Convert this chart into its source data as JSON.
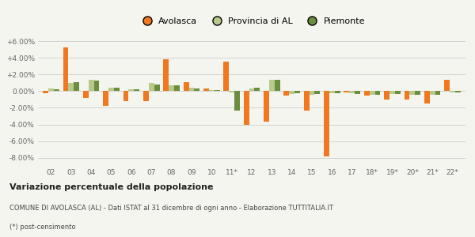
{
  "categories": [
    "02",
    "03",
    "04",
    "05",
    "06",
    "07",
    "08",
    "09",
    "10",
    "11*",
    "12",
    "13",
    "14",
    "15",
    "16",
    "17",
    "18*",
    "19*",
    "20*",
    "21*",
    "22*"
  ],
  "avolasca": [
    -0.2,
    5.3,
    -0.8,
    -1.8,
    -1.2,
    -1.2,
    3.9,
    1.1,
    0.3,
    3.6,
    -4.0,
    -3.7,
    -0.5,
    -2.3,
    -7.9,
    -0.1,
    -0.5,
    -1.0,
    -1.0,
    -1.5,
    1.4
  ],
  "provincia": [
    0.3,
    1.0,
    1.4,
    0.4,
    0.2,
    1.0,
    0.7,
    0.4,
    0.1,
    -0.1,
    0.3,
    1.4,
    -0.3,
    -0.4,
    -0.2,
    -0.2,
    -0.4,
    -0.3,
    -0.4,
    -0.4,
    -0.1
  ],
  "piemonte": [
    0.2,
    1.1,
    1.3,
    0.4,
    0.2,
    0.8,
    0.7,
    0.3,
    0.1,
    -2.3,
    0.4,
    1.4,
    -0.2,
    -0.3,
    -0.2,
    -0.3,
    -0.4,
    -0.3,
    -0.4,
    -0.4,
    -0.1
  ],
  "color_avolasca": "#f07820",
  "color_provincia": "#b8c98a",
  "color_piemonte": "#6b8e3e",
  "ylim": [
    -9.0,
    7.0
  ],
  "yticks": [
    -8.0,
    -6.0,
    -4.0,
    -2.0,
    0.0,
    2.0,
    4.0,
    6.0
  ],
  "title": "Variazione percentuale della popolazione",
  "subtitle": "COMUNE DI AVOLASCA (AL) - Dati ISTAT al 31 dicembre di ogni anno - Elaborazione TUTTITALIA.IT",
  "footnote": "(*) post-censimento",
  "legend_labels": [
    "Avolasca",
    "Provincia di AL",
    "Piemonte"
  ],
  "bg_color": "#f5f5f0",
  "bar_width": 0.27
}
